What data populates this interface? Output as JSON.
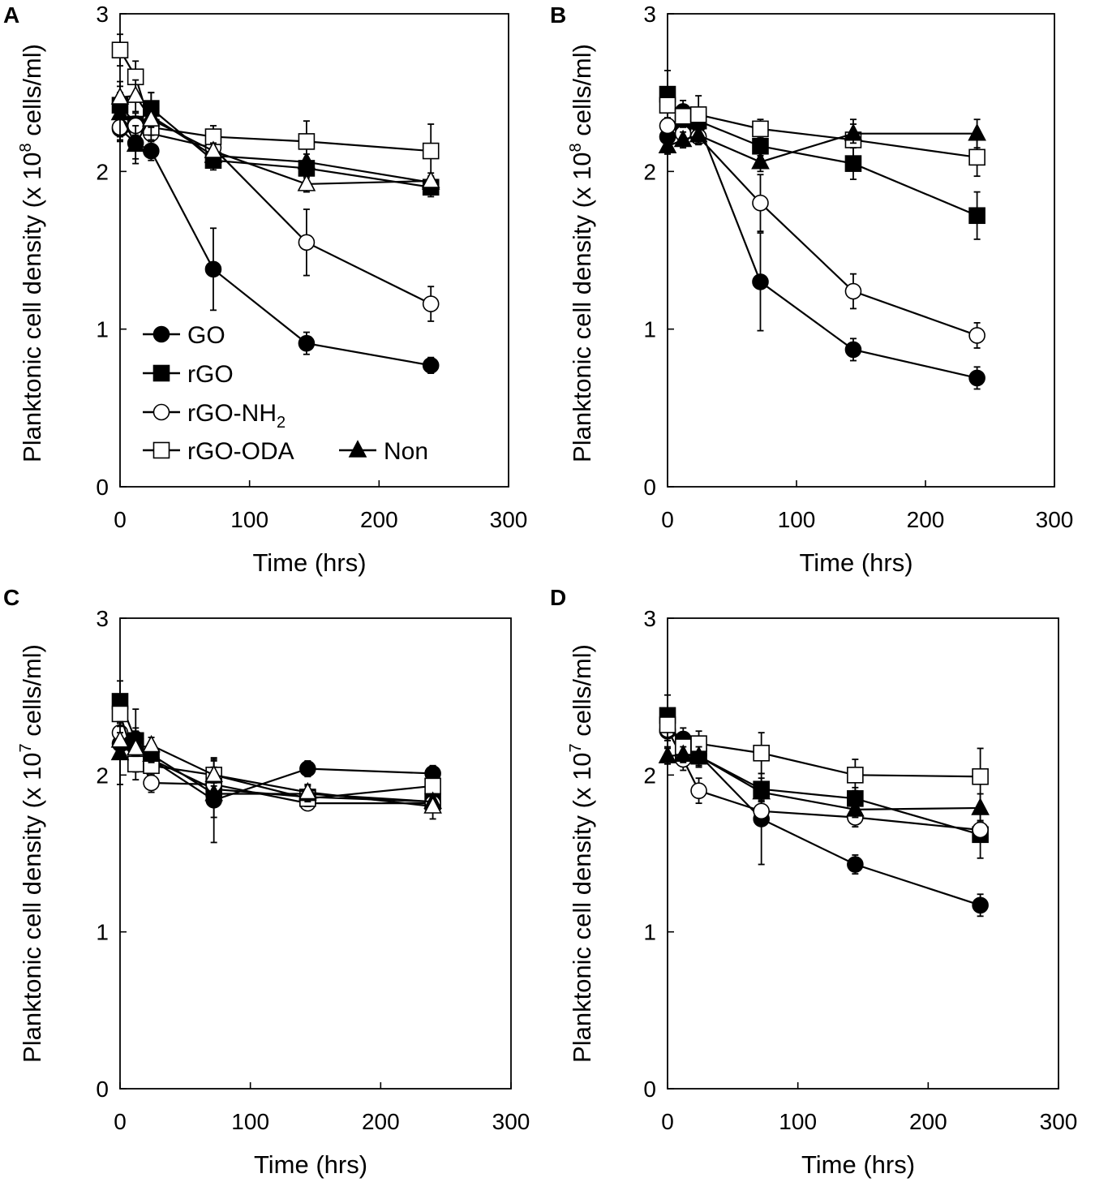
{
  "legend": {
    "items": [
      {
        "label": "GO",
        "marker": "circle",
        "fill": "#000000"
      },
      {
        "label": "rGO",
        "marker": "square",
        "fill": "#000000"
      },
      {
        "label": "rGO-NH",
        "sub": "2",
        "marker": "circle",
        "fill": "#ffffff"
      },
      {
        "label": "rGO-ODA",
        "marker": "square",
        "fill": "#ffffff"
      },
      {
        "label": "Non",
        "marker": "triangle",
        "fill": "#000000"
      }
    ]
  },
  "chart_data": [
    {
      "panel": "A",
      "type": "line",
      "title": "",
      "xlabel": "Time (hrs)",
      "ylabel": {
        "prefix": "Planktonic cell density (x 10",
        "exp": "8",
        "suffix": " cells/ml)"
      },
      "xlim": [
        0,
        300
      ],
      "ylim": [
        0,
        3
      ],
      "xticks": [
        "0",
        "100",
        "200",
        "300"
      ],
      "yticks": [
        "0",
        "1",
        "2",
        "3"
      ],
      "legend_location": "bottom-left",
      "x": [
        0,
        12,
        24,
        72,
        144,
        240
      ],
      "series": [
        {
          "name": "GO",
          "marker": "circle",
          "fill": "#000000",
          "values": [
            2.27,
            2.18,
            2.13,
            1.38,
            0.91,
            0.77
          ],
          "errors": [
            0.08,
            0.1,
            0.06,
            0.26,
            0.07,
            0.05
          ]
        },
        {
          "name": "rGO",
          "marker": "square",
          "fill": "#000000",
          "values": [
            2.42,
            2.3,
            2.4,
            2.07,
            2.02,
            1.9
          ],
          "errors": [
            0.08,
            0.07,
            0.1,
            0.06,
            0.06,
            0.06
          ]
        },
        {
          "name": "rGO-NH2",
          "marker": "circle",
          "fill": "#ffffff",
          "values": [
            2.28,
            2.29,
            2.24,
            2.15,
            1.55,
            1.16
          ],
          "errors": [
            0.06,
            0.06,
            0.05,
            0.05,
            0.21,
            0.11
          ]
        },
        {
          "name": "rGO-ODA",
          "marker": "square",
          "fill": "#ffffff",
          "values": [
            2.77,
            2.6,
            2.28,
            2.22,
            2.19,
            2.13
          ],
          "errors": [
            0.1,
            0.1,
            0.05,
            0.07,
            0.13,
            0.17
          ]
        },
        {
          "name": "Non",
          "marker": "triangle",
          "fill": "#000000",
          "values": [
            2.37,
            2.17,
            2.35,
            2.1,
            2.06,
            1.93
          ],
          "errors": [
            0.17,
            0.12,
            0.15,
            0.05,
            0.05,
            0.04
          ]
        },
        {
          "name": "Non (open)",
          "marker": "triangle",
          "fill": "#ffffff",
          "values": [
            2.47,
            2.48,
            2.33,
            2.13,
            1.92,
            1.94
          ],
          "errors": [
            0.1,
            0.1,
            0.05,
            0.05,
            0.05,
            0.05
          ]
        }
      ]
    },
    {
      "panel": "B",
      "type": "line",
      "title": "",
      "xlabel": "Time (hrs)",
      "ylabel": {
        "prefix": "Planktonic cell density (x 10",
        "exp": "8",
        "suffix": " cells/ml)"
      },
      "xlim": [
        0,
        300
      ],
      "ylim": [
        0,
        3
      ],
      "xticks": [
        "0",
        "100",
        "200",
        "300"
      ],
      "yticks": [
        "0",
        "1",
        "2",
        "3"
      ],
      "x": [
        0,
        12,
        24,
        72,
        144,
        240
      ],
      "series": [
        {
          "name": "GO",
          "marker": "circle",
          "fill": "#000000",
          "values": [
            2.22,
            2.38,
            2.3,
            1.3,
            0.87,
            0.69
          ],
          "errors": [
            0.08,
            0.07,
            0.05,
            0.31,
            0.07,
            0.07
          ]
        },
        {
          "name": "rGO",
          "marker": "square",
          "fill": "#000000",
          "values": [
            2.49,
            2.31,
            2.32,
            2.16,
            2.05,
            1.72
          ],
          "errors": [
            0.15,
            0.07,
            0.07,
            0.06,
            0.1,
            0.15
          ]
        },
        {
          "name": "rGO-NH2",
          "marker": "circle",
          "fill": "#ffffff",
          "values": [
            2.29,
            2.24,
            2.22,
            1.8,
            1.24,
            0.96
          ],
          "errors": [
            0.05,
            0.05,
            0.05,
            0.18,
            0.11,
            0.08
          ]
        },
        {
          "name": "rGO-ODA",
          "marker": "square",
          "fill": "#ffffff",
          "values": [
            2.42,
            2.35,
            2.36,
            2.27,
            2.2,
            2.09
          ],
          "errors": [
            0.08,
            0.07,
            0.12,
            0.06,
            0.13,
            0.12
          ]
        },
        {
          "name": "Non",
          "marker": "triangle",
          "fill": "#000000",
          "values": [
            2.16,
            2.2,
            2.23,
            2.06,
            2.24,
            2.24
          ],
          "errors": [
            0.05,
            0.05,
            0.05,
            0.06,
            0.06,
            0.09
          ]
        }
      ]
    },
    {
      "panel": "C",
      "type": "line",
      "title": "",
      "xlabel": "Time (hrs)",
      "ylabel": {
        "prefix": "Planktonic cell density (x 10",
        "exp": "7",
        "suffix": " cells/ml)"
      },
      "xlim": [
        0,
        300
      ],
      "ylim": [
        0,
        3
      ],
      "xticks": [
        "0",
        "100",
        "200",
        "300"
      ],
      "yticks": [
        "0",
        "1",
        "2",
        "3"
      ],
      "x": [
        0,
        12,
        24,
        72,
        144,
        240
      ],
      "series": [
        {
          "name": "GO",
          "marker": "circle",
          "fill": "#000000",
          "values": [
            2.2,
            2.23,
            2.1,
            1.84,
            2.04,
            2.01
          ],
          "errors": [
            0.1,
            0.07,
            0.06,
            0.27,
            0.05,
            0.05
          ]
        },
        {
          "name": "rGO",
          "marker": "square",
          "fill": "#000000",
          "values": [
            2.47,
            2.22,
            2.1,
            1.91,
            1.86,
            1.83
          ],
          "errors": [
            0.13,
            0.2,
            0.06,
            0.18,
            0.05,
            0.05
          ]
        },
        {
          "name": "rGO-NH2",
          "marker": "circle",
          "fill": "#ffffff",
          "values": [
            2.27,
            2.17,
            1.95,
            1.94,
            1.82,
            1.82
          ],
          "errors": [
            0.06,
            0.08,
            0.06,
            0.07,
            0.04,
            0.05
          ]
        },
        {
          "name": "rGO-ODA",
          "marker": "square",
          "fill": "#ffffff",
          "values": [
            2.39,
            2.07,
            2.06,
            2.0,
            1.85,
            1.93
          ],
          "errors": [
            0.08,
            0.1,
            0.06,
            0.1,
            0.05,
            0.07
          ]
        },
        {
          "name": "Non",
          "marker": "triangle",
          "fill": "#000000",
          "values": [
            2.14,
            2.2,
            2.13,
            1.88,
            1.88,
            1.83
          ],
          "errors": [
            0.2,
            0.08,
            0.05,
            0.05,
            0.05,
            0.05
          ]
        },
        {
          "name": "Non (open)",
          "marker": "triangle",
          "fill": "#ffffff",
          "values": [
            2.22,
            2.17,
            2.19,
            2.0,
            1.89,
            1.8
          ],
          "errors": [
            0.05,
            0.05,
            0.05,
            0.05,
            0.05,
            0.08
          ]
        }
      ]
    },
    {
      "panel": "D",
      "type": "line",
      "title": "",
      "xlabel": "Time (hrs)",
      "ylabel": {
        "prefix": "Planktonic cell density (x 10",
        "exp": "7",
        "suffix": " cells/ml)"
      },
      "xlim": [
        0,
        300
      ],
      "ylim": [
        0,
        3
      ],
      "xticks": [
        "0",
        "100",
        "200",
        "300"
      ],
      "yticks": [
        "0",
        "1",
        "2",
        "3"
      ],
      "x": [
        0,
        12,
        24,
        72,
        144,
        240
      ],
      "series": [
        {
          "name": "GO",
          "marker": "circle",
          "fill": "#000000",
          "values": [
            2.28,
            2.23,
            2.13,
            1.72,
            1.43,
            1.17
          ],
          "errors": [
            0.1,
            0.07,
            0.06,
            0.29,
            0.06,
            0.07
          ]
        },
        {
          "name": "rGO",
          "marker": "square",
          "fill": "#000000",
          "values": [
            2.38,
            2.15,
            2.12,
            1.91,
            1.85,
            1.62
          ],
          "errors": [
            0.13,
            0.07,
            0.07,
            0.07,
            0.07,
            0.15
          ]
        },
        {
          "name": "rGO-NH2",
          "marker": "circle",
          "fill": "#ffffff",
          "values": [
            2.29,
            2.1,
            1.9,
            1.77,
            1.73,
            1.65
          ],
          "errors": [
            0.07,
            0.07,
            0.08,
            0.06,
            0.06,
            0.06
          ]
        },
        {
          "name": "rGO-ODA",
          "marker": "square",
          "fill": "#ffffff",
          "values": [
            2.32,
            2.18,
            2.2,
            2.14,
            2.0,
            1.99
          ],
          "errors": [
            0.1,
            0.08,
            0.08,
            0.13,
            0.1,
            0.18
          ]
        },
        {
          "name": "Non",
          "marker": "triangle",
          "fill": "#000000",
          "values": [
            2.12,
            2.13,
            2.12,
            1.89,
            1.78,
            1.79
          ],
          "errors": [
            0.05,
            0.05,
            0.06,
            0.06,
            0.05,
            0.09
          ]
        }
      ]
    }
  ]
}
